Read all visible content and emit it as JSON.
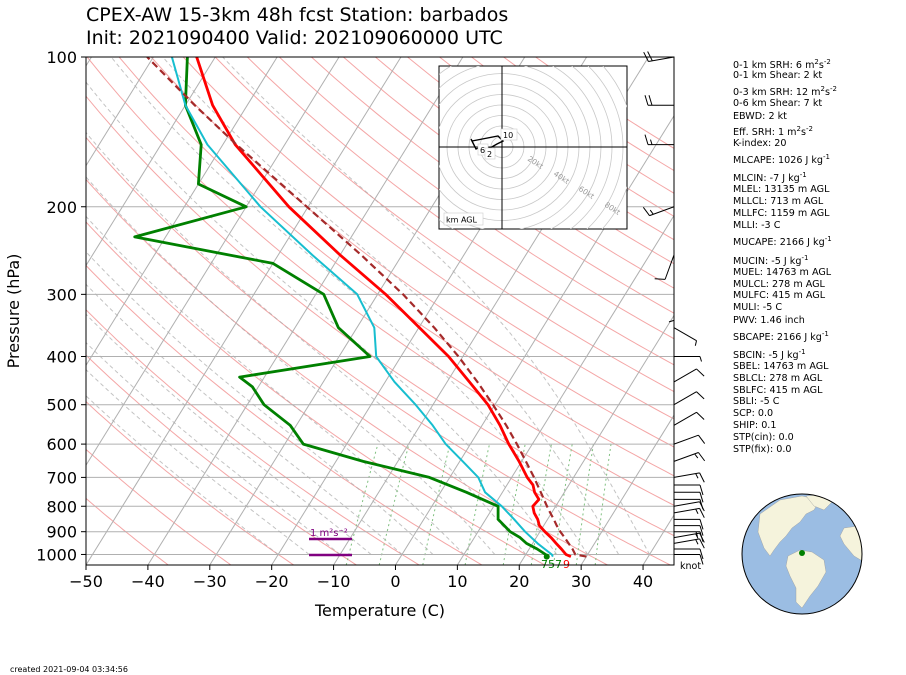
{
  "header": {
    "title_line1": "CPEX-AW 15-3km  48h fcst  Station: barbados",
    "title_line2": "Init: 2021090400  Valid: 202109060000 UTC"
  },
  "chart_data": {
    "type": "line",
    "subtype": "skew-T log-p",
    "xlabel": "Temperature (C)",
    "ylabel": "Pressure (hPa)",
    "xlim": [
      -50,
      45
    ],
    "ylim": [
      1050,
      100
    ],
    "y_scale": "log",
    "x_ticks": [
      -50,
      -40,
      -30,
      -20,
      -10,
      0,
      10,
      20,
      30,
      40
    ],
    "y_ticks": [
      100,
      200,
      300,
      400,
      500,
      600,
      700,
      800,
      900,
      1000
    ],
    "grid": true,
    "colors": {
      "temperature": "#ff0000",
      "dewpoint": "#008000",
      "wetbulb": "#17becf",
      "parcel": "#a52a2a",
      "dry_adiabats": "#f4a6a6",
      "moist_adiabats": "#aaaaaa",
      "mixing_ratio": "#80c080",
      "srh_layer": "#800080"
    },
    "series": [
      {
        "key": "temperature",
        "pressure": [
          1010,
          1000,
          975,
          950,
          925,
          900,
          875,
          850,
          825,
          800,
          775,
          750,
          725,
          700,
          650,
          600,
          550,
          500,
          450,
          400,
          350,
          300,
          250,
          200,
          150,
          125,
          100
        ],
        "temperature": [
          27.5,
          26.5,
          25.2,
          23.8,
          22.4,
          20.8,
          19.3,
          18.4,
          17.2,
          16.3,
          16.6,
          15.2,
          14.2,
          12.5,
          9.6,
          6.2,
          2.9,
          -1.1,
          -6.4,
          -12.3,
          -19.9,
          -28.7,
          -40.0,
          -53.1,
          -68.0,
          -75.6,
          -83.0
        ]
      },
      {
        "key": "dewpoint",
        "pressure": [
          1010,
          1000,
          975,
          950,
          925,
          900,
          850,
          800,
          750,
          700,
          650,
          600,
          550,
          500,
          460,
          440,
          400,
          350,
          300,
          260,
          230,
          200,
          180,
          150,
          125,
          100
        ],
        "temperature": [
          23.6,
          23.2,
          21.3,
          19.0,
          17.4,
          15.2,
          12.0,
          10.7,
          4.2,
          -3.3,
          -15.6,
          -27.0,
          -31.0,
          -37.3,
          -41.0,
          -44.0,
          -25.0,
          -33.0,
          -38.7,
          -50.0,
          -75.0,
          -60.0,
          -70.0,
          -73.5,
          -80.0,
          -84.5
        ]
      },
      {
        "key": "wetbulb",
        "pressure": [
          1010,
          1000,
          950,
          900,
          850,
          800,
          750,
          700,
          650,
          600,
          550,
          500,
          450,
          400,
          350,
          300,
          250,
          200,
          150,
          125,
          100
        ],
        "temperature": [
          24.6,
          24.2,
          20.8,
          17.6,
          14.6,
          11.3,
          7.2,
          4.6,
          0.5,
          -4.0,
          -8.0,
          -12.8,
          -18.5,
          -24.0,
          -27.2,
          -33.3,
          -44.5,
          -57.7,
          -72.5,
          -80.0,
          -87.0
        ]
      },
      {
        "key": "parcel",
        "pressure": [
          1010,
          1000,
          975,
          950,
          925,
          900,
          875,
          850,
          825,
          800,
          750,
          700,
          650,
          600,
          550,
          500,
          450,
          400,
          350,
          300,
          250,
          200,
          150,
          125,
          100
        ],
        "temperature": [
          30.0,
          28.0,
          27.0,
          25.8,
          24.6,
          23.3,
          22.1,
          21.0,
          19.8,
          18.6,
          16.2,
          13.6,
          10.7,
          7.5,
          3.9,
          -0.3,
          -5.1,
          -10.7,
          -17.5,
          -25.9,
          -36.6,
          -50.2,
          -67.8,
          -78.5,
          -91.0
        ]
      }
    ],
    "annotations": {
      "lcl_label": "757",
      "lfc_label": "9",
      "srh_layer_label": "1 m²s⁻²",
      "wind_unit": "knot"
    },
    "wind_barbs": {
      "pressure": [
        1000,
        975,
        950,
        925,
        900,
        875,
        850,
        825,
        800,
        775,
        750,
        725,
        700,
        650,
        600,
        550,
        500,
        450,
        400,
        350,
        300,
        250,
        200,
        150,
        125,
        100
      ],
      "speed_kt": [
        10,
        10,
        15,
        15,
        15,
        10,
        10,
        15,
        10,
        10,
        10,
        10,
        15,
        15,
        10,
        10,
        10,
        10,
        5,
        5,
        5,
        10,
        15,
        15,
        20,
        20
      ],
      "direction_deg": [
        90,
        90,
        80,
        80,
        90,
        90,
        90,
        80,
        80,
        90,
        90,
        90,
        80,
        70,
        70,
        60,
        60,
        60,
        90,
        120,
        180,
        200,
        250,
        270,
        270,
        260
      ]
    },
    "hodograph": {
      "label": "km AGL",
      "ring_labels": [
        "20kt",
        "40kt",
        "60kt",
        "80kt"
      ],
      "height_labels": [
        "10",
        "6",
        "2"
      ]
    }
  },
  "indices": [
    {
      "prefix": "0-1 km SRH: 6 m",
      "sup1": "2",
      "mid": "s",
      "sup2": "-2"
    },
    {
      "prefix": "0-1 km Shear: 2 kt"
    },
    {
      "prefix": "0-3 km SRH: 12 m",
      "sup1": "2",
      "mid": "s",
      "sup2": "-2"
    },
    {
      "prefix": "0-6 km Shear: 7 kt"
    },
    {
      "prefix": "EBWD: 2 kt"
    },
    {
      "prefix": "Eff. SRH: 1 m",
      "sup1": "2",
      "mid": "s",
      "sup2": "-2"
    },
    {
      "prefix": "K-index: 20"
    },
    {
      "prefix": "MLCAPE: 1026 J kg",
      "sup1": "-1"
    },
    {
      "prefix": "MLCIN: -7 J kg",
      "sup1": "-1"
    },
    {
      "prefix": "MLEL: 13135 m AGL"
    },
    {
      "prefix": "MLLCL: 713 m AGL"
    },
    {
      "prefix": "MLLFC: 1159 m AGL"
    },
    {
      "prefix": "MLLI: -3 C"
    },
    {
      "prefix": "MUCAPE: 2166 J kg",
      "sup1": "-1"
    },
    {
      "prefix": "MUCIN: -5 J kg",
      "sup1": "-1"
    },
    {
      "prefix": "MUEL: 14763 m AGL"
    },
    {
      "prefix": "MULCL: 278 m AGL"
    },
    {
      "prefix": "MULFC: 415 m AGL"
    },
    {
      "prefix": "MULI: -5 C"
    },
    {
      "prefix": "PWV: 1.46 inch"
    },
    {
      "prefix": "SBCAPE: 2166 J kg",
      "sup1": "-1"
    },
    {
      "prefix": "SBCIN: -5 J kg",
      "sup1": "-1"
    },
    {
      "prefix": "SBEL: 14763 m AGL"
    },
    {
      "prefix": "SBLCL: 278 m AGL"
    },
    {
      "prefix": "SBLFC: 415 m AGL"
    },
    {
      "prefix": "SBLI: -5 C"
    },
    {
      "prefix": "SCP: 0.0"
    },
    {
      "prefix": "SHIP: 0.1"
    },
    {
      "prefix": "STP(cin): 0.0"
    },
    {
      "prefix": "STP(fix): 0.0"
    }
  ],
  "footer": {
    "created": "created 2021-09-04 03:34:56"
  },
  "globe": {
    "ocean_color": "#9bbde3",
    "land_color": "#f5f3dc",
    "station_color": "#008000"
  }
}
